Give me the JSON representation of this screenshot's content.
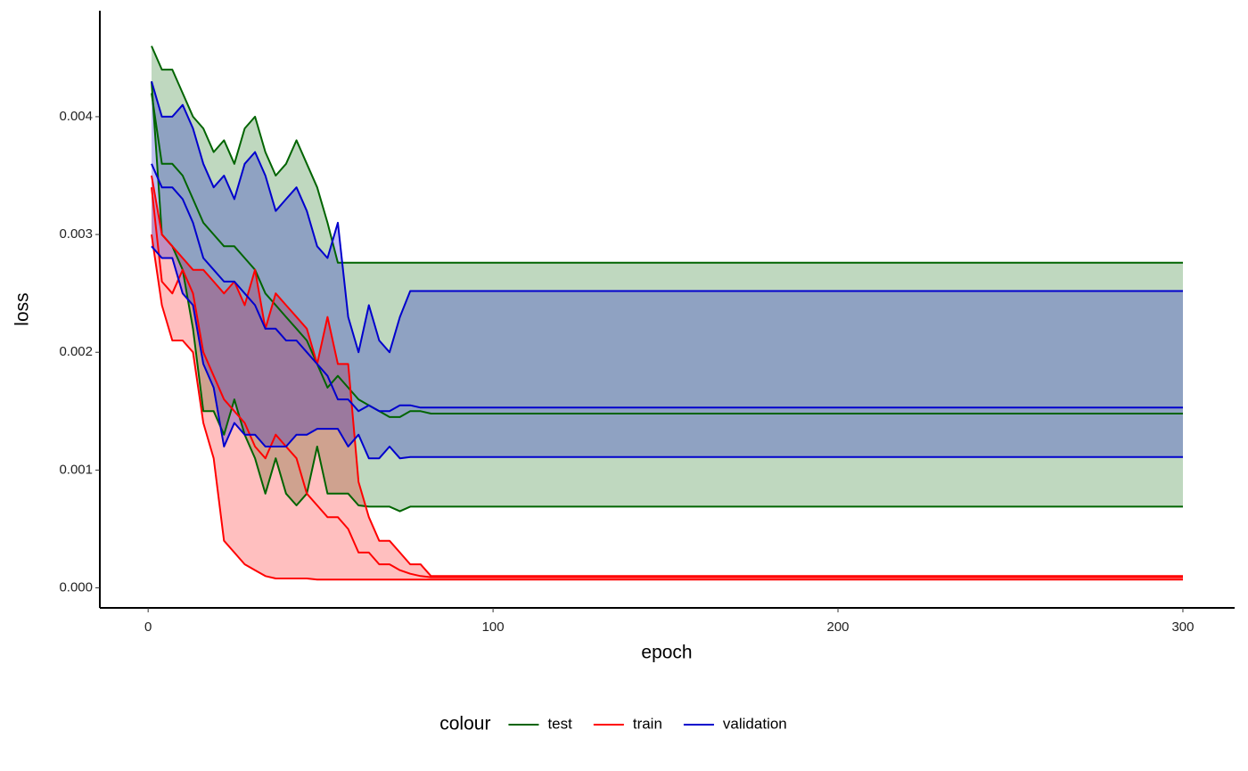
{
  "chart_data": {
    "type": "line",
    "x_label": "epoch",
    "y_label": "loss",
    "legend_title": "colour",
    "legend": "bottom",
    "xlim": [
      -14,
      315
    ],
    "ylim": [
      -0.00017,
      0.0049
    ],
    "xticks": [
      0,
      100,
      200,
      300
    ],
    "yticks": [
      {
        "value": 0,
        "label": "0.000"
      },
      {
        "value": 0.001,
        "label": "0.001"
      },
      {
        "value": 0.002,
        "label": "0.002"
      },
      {
        "value": 0.003,
        "label": "0.003"
      },
      {
        "value": 0.004,
        "label": "0.004"
      }
    ],
    "x": [
      1,
      4,
      7,
      10,
      13,
      16,
      19,
      22,
      25,
      28,
      31,
      34,
      37,
      40,
      43,
      46,
      49,
      52,
      55,
      58,
      61,
      64,
      67,
      70,
      73,
      76,
      79,
      82,
      85,
      300
    ],
    "series": [
      {
        "name": "test",
        "color": "#006400",
        "lower": [
          0.0043,
          0.003,
          0.0029,
          0.0027,
          0.0022,
          0.0015,
          0.0015,
          0.0013,
          0.0016,
          0.0013,
          0.0011,
          0.0008,
          0.0011,
          0.0008,
          0.0007,
          0.0008,
          0.0012,
          0.0008,
          0.0008,
          0.0008,
          0.0007,
          0.00069,
          0.00069,
          0.00069,
          0.00065,
          0.00069,
          0.00069,
          0.00069,
          0.00069,
          0.00069
        ],
        "values": [
          0.0042,
          0.0036,
          0.0036,
          0.0035,
          0.0033,
          0.0031,
          0.003,
          0.0029,
          0.0029,
          0.0028,
          0.0027,
          0.0025,
          0.0024,
          0.0023,
          0.0022,
          0.0021,
          0.0019,
          0.0017,
          0.0018,
          0.0017,
          0.0016,
          0.00155,
          0.0015,
          0.00145,
          0.00145,
          0.0015,
          0.0015,
          0.00148,
          0.00148,
          0.00148
        ],
        "upper": [
          0.0046,
          0.0044,
          0.0044,
          0.0042,
          0.004,
          0.0039,
          0.0037,
          0.0038,
          0.0036,
          0.0039,
          0.004,
          0.0037,
          0.0035,
          0.0036,
          0.0038,
          0.0036,
          0.0034,
          0.0031,
          0.00276,
          0.00276,
          0.00276,
          0.00276,
          0.00276,
          0.00276,
          0.00276,
          0.00276,
          0.00276,
          0.00276,
          0.00276,
          0.00276
        ]
      },
      {
        "name": "train",
        "color": "#ff0000",
        "lower": [
          0.003,
          0.0024,
          0.0021,
          0.0021,
          0.002,
          0.0014,
          0.0011,
          0.0004,
          0.0003,
          0.0002,
          0.00015,
          0.0001,
          8e-05,
          8e-05,
          8e-05,
          8e-05,
          7e-05,
          7e-05,
          7e-05,
          7e-05,
          7e-05,
          7e-05,
          7e-05,
          7e-05,
          7e-05,
          7e-05,
          7e-05,
          7e-05,
          7e-05,
          7e-05
        ],
        "values": [
          0.0034,
          0.0026,
          0.0025,
          0.0027,
          0.0025,
          0.002,
          0.0018,
          0.0016,
          0.0015,
          0.0014,
          0.0012,
          0.0011,
          0.0013,
          0.0012,
          0.0011,
          0.0008,
          0.0007,
          0.0006,
          0.0006,
          0.0005,
          0.0003,
          0.0003,
          0.0002,
          0.0002,
          0.00015,
          0.00012,
          0.0001,
          9e-05,
          9e-05,
          9e-05
        ],
        "upper": [
          0.0035,
          0.003,
          0.0029,
          0.0028,
          0.0027,
          0.0027,
          0.0026,
          0.0025,
          0.0026,
          0.0024,
          0.0027,
          0.0022,
          0.0025,
          0.0024,
          0.0023,
          0.0022,
          0.0019,
          0.0023,
          0.0019,
          0.0019,
          0.0009,
          0.0006,
          0.0004,
          0.0004,
          0.0003,
          0.0002,
          0.0002,
          0.0001,
          0.0001,
          0.0001
        ]
      },
      {
        "name": "validation",
        "color": "#0000cd",
        "lower": [
          0.0029,
          0.0028,
          0.0028,
          0.0025,
          0.0024,
          0.0019,
          0.0017,
          0.0012,
          0.0014,
          0.0013,
          0.0013,
          0.0012,
          0.0012,
          0.0012,
          0.0013,
          0.0013,
          0.00135,
          0.00135,
          0.00135,
          0.0012,
          0.0013,
          0.0011,
          0.0011,
          0.0012,
          0.0011,
          0.00111,
          0.00111,
          0.00111,
          0.00111,
          0.00111
        ],
        "values": [
          0.0036,
          0.0034,
          0.0034,
          0.0033,
          0.0031,
          0.0028,
          0.0027,
          0.0026,
          0.0026,
          0.0025,
          0.0024,
          0.0022,
          0.0022,
          0.0021,
          0.0021,
          0.002,
          0.0019,
          0.0018,
          0.0016,
          0.0016,
          0.0015,
          0.00155,
          0.0015,
          0.0015,
          0.00155,
          0.00155,
          0.00153,
          0.00153,
          0.00153,
          0.00153
        ],
        "upper": [
          0.0043,
          0.004,
          0.004,
          0.0041,
          0.0039,
          0.0036,
          0.0034,
          0.0035,
          0.0033,
          0.0036,
          0.0037,
          0.0035,
          0.0032,
          0.0033,
          0.0034,
          0.0032,
          0.0029,
          0.0028,
          0.0031,
          0.0023,
          0.002,
          0.0024,
          0.0021,
          0.002,
          0.0023,
          0.00252,
          0.00252,
          0.00252,
          0.00252,
          0.00252
        ]
      }
    ]
  }
}
